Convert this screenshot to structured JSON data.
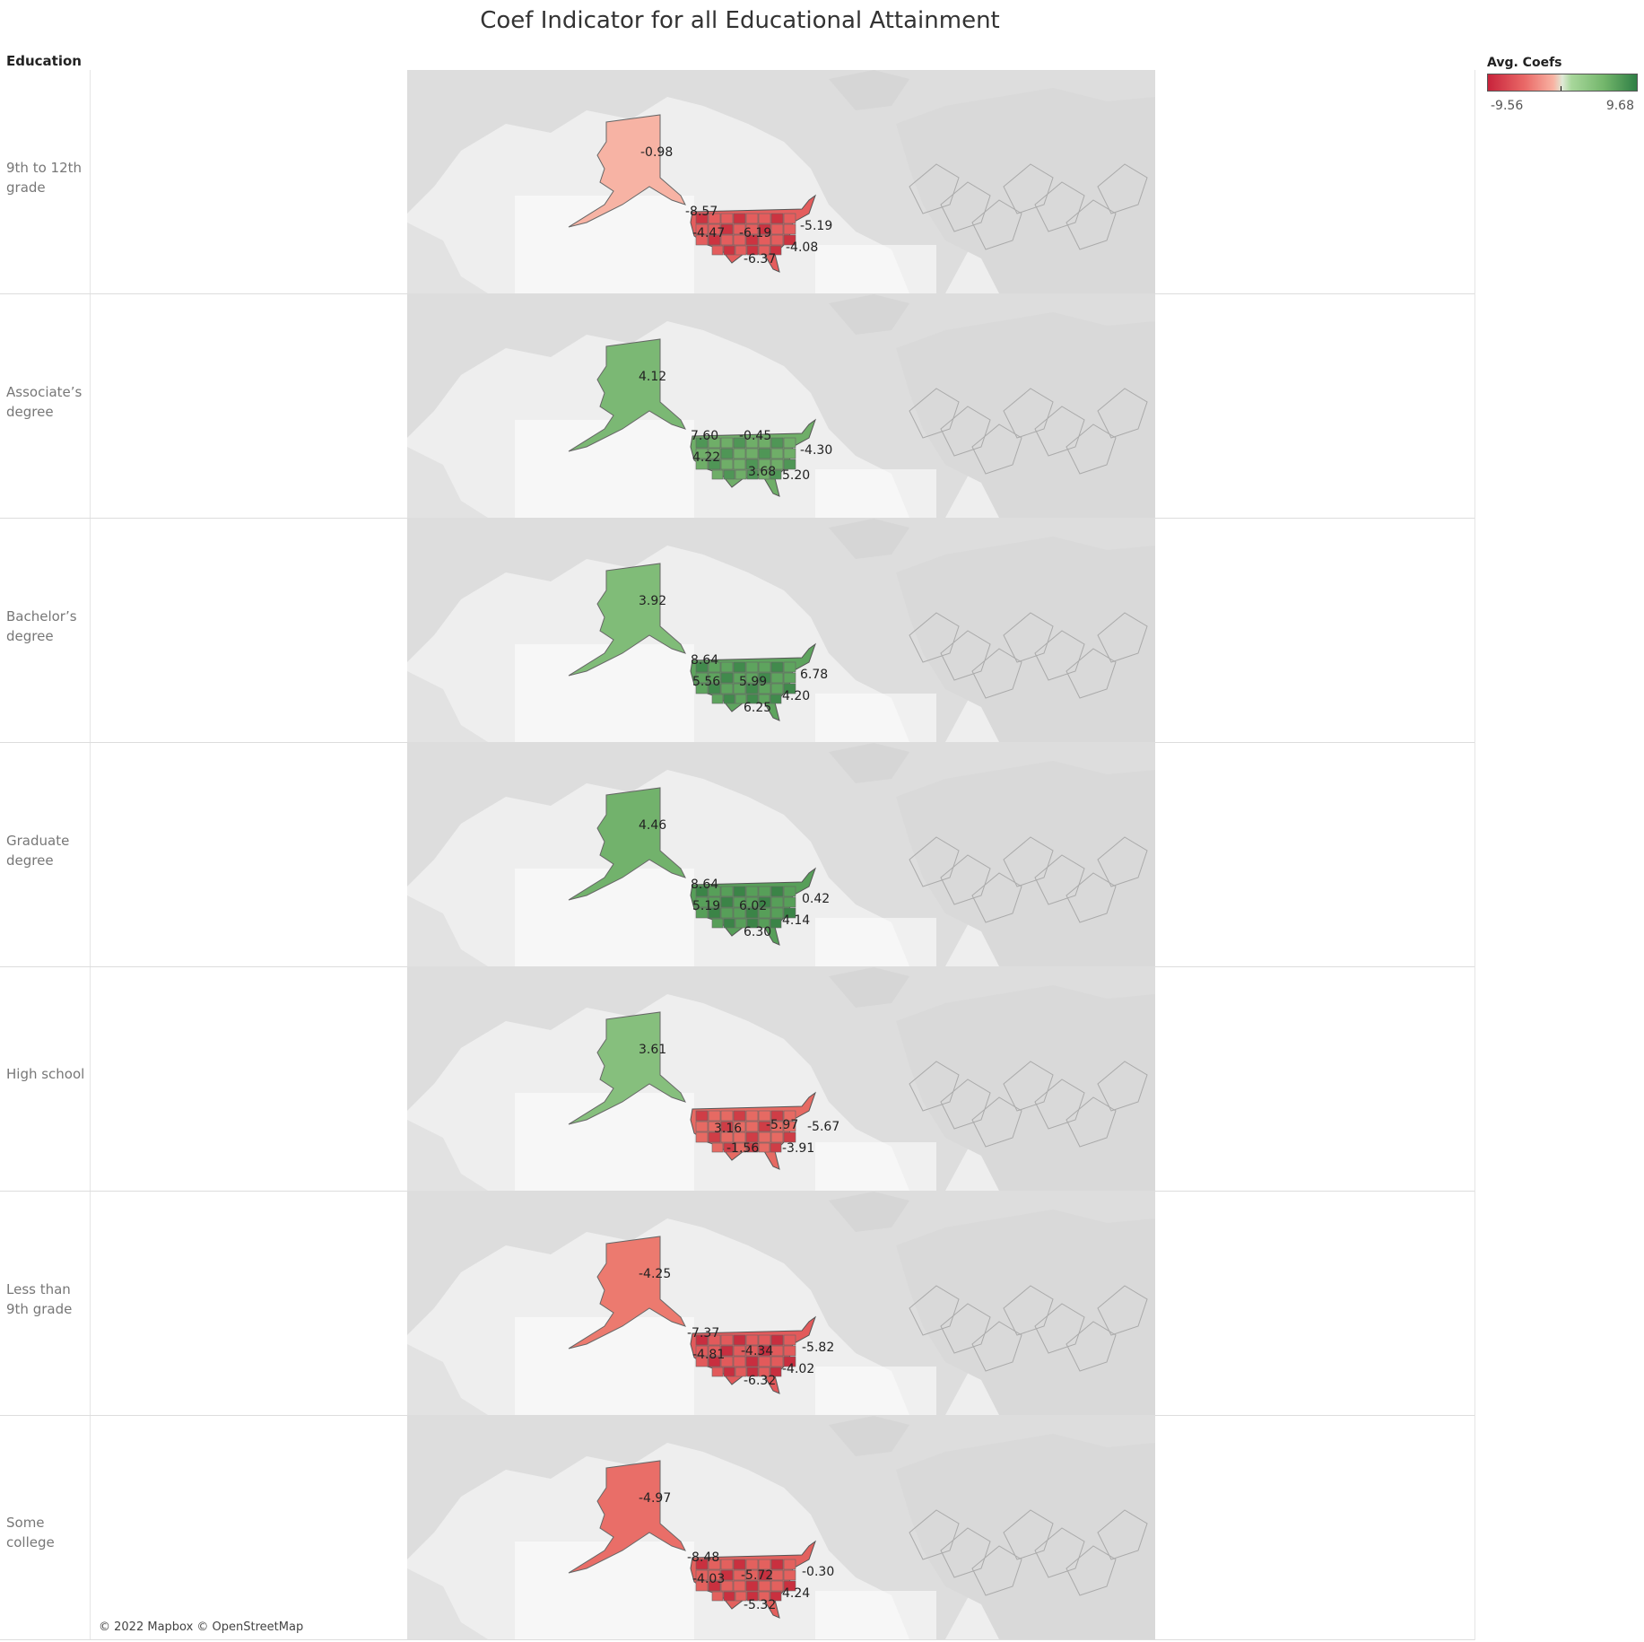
{
  "title": "Coef Indicator for all Educational Attainment",
  "column_header": "Education",
  "legend": {
    "title": "Avg. Coefs",
    "min": "-9.56",
    "max": "9.68",
    "colors": [
      "#c8233b",
      "#ea6a68",
      "#f8b3a3",
      "#dfe9d6",
      "#a8d79b",
      "#73b66b",
      "#2f7f45"
    ]
  },
  "attribution": "© 2022 Mapbox © OpenStreetMap",
  "rows": [
    {
      "label": "9th to 12th grade",
      "alaska": {
        "value": "-0.98",
        "color": "#f7b3a4"
      },
      "us_color": "#e45d5d",
      "us_accent": "#cc3340",
      "labels": [
        "-8.57",
        "-4.47",
        "-6.19",
        "-5.19",
        "-4.08",
        "-6.37"
      ]
    },
    {
      "label": "Associate’s degree",
      "alaska": {
        "value": "4.12",
        "color": "#7bb874"
      },
      "us_color": "#6fae68",
      "us_accent": "#4f9656",
      "labels": [
        "7.60",
        "-0.45",
        "4.22",
        "-4.30",
        "3.68",
        "5.20"
      ]
    },
    {
      "label": "Bachelor’s degree",
      "alaska": {
        "value": "3.92",
        "color": "#80bc78"
      },
      "us_color": "#5ea45e",
      "us_accent": "#418a4c",
      "labels": [
        "8.64",
        "5.56",
        "5.99",
        "6.78",
        "4.20",
        "6.25"
      ]
    },
    {
      "label": "Graduate degree",
      "alaska": {
        "value": "4.46",
        "color": "#72b26c"
      },
      "us_color": "#579f59",
      "us_accent": "#3b8447",
      "labels": [
        "8.64",
        "5.19",
        "6.02",
        "0.42",
        "4.14",
        "6.30"
      ]
    },
    {
      "label": "High school",
      "alaska": {
        "value": "3.61",
        "color": "#86bf7d"
      },
      "us_color": "#e66a63",
      "us_accent": "#cf3d46",
      "labels": [
        "3.16",
        "-5.97",
        "-5.67",
        "-1.56",
        "-3.91"
      ]
    },
    {
      "label": "Less than 9th grade",
      "alaska": {
        "value": "-4.25",
        "color": "#ec7a6f"
      },
      "us_color": "#e25a5b",
      "us_accent": "#c82e3f",
      "labels": [
        "-7.37",
        "-4.81",
        "-4.34",
        "-5.82",
        "-4.02",
        "-6.32"
      ]
    },
    {
      "label": "Some college",
      "alaska": {
        "value": "-4.97",
        "color": "#e96e68"
      },
      "us_color": "#e3615e",
      "us_accent": "#c9303f",
      "labels": [
        "-8.48",
        "-4.03",
        "-5.72",
        "-0.30",
        "4.24",
        "-5.32"
      ]
    }
  ]
}
